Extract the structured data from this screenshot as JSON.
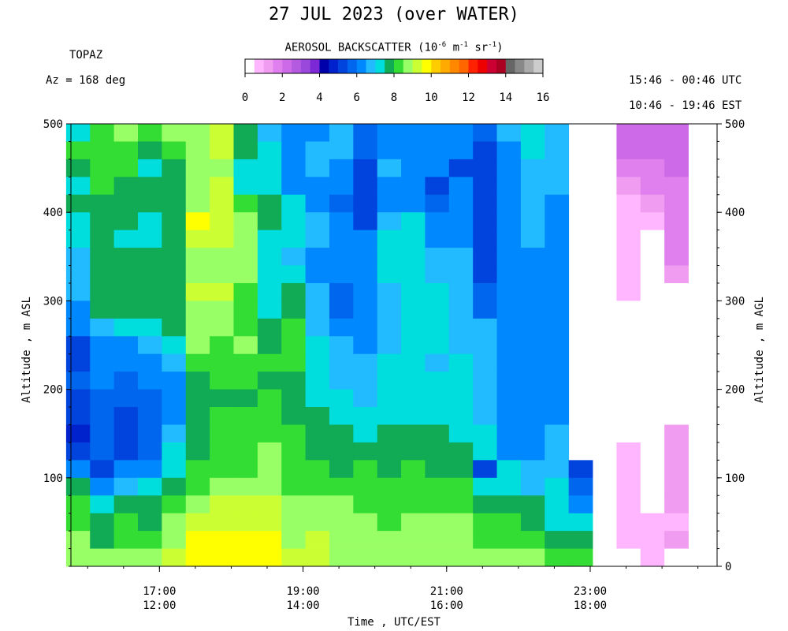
{
  "header": {
    "title": "27 JUL 2023 (over WATER)",
    "instrument": "TOPAZ",
    "azimuth": "Az = 168 deg",
    "time_utc": "15:46 - 00:46 UTC",
    "time_est": "10:46 - 19:46 EST"
  },
  "colorbar": {
    "title_prefix": "AEROSOL BACKSCATTER (10",
    "title_exp1": "-6",
    "title_mid": " m",
    "title_exp2": "-1",
    "title_mid2": " sr",
    "title_exp3": "-1",
    "title_suffix": ")",
    "ticks": [
      "0",
      "2",
      "4",
      "6",
      "8",
      "10",
      "12",
      "14",
      "16"
    ],
    "range": [
      0,
      16
    ]
  },
  "colors": {
    "scale": [
      "#ffffff",
      "#ffb6ff",
      "#f09cf0",
      "#e080ee",
      "#cd6ae8",
      "#b45ae0",
      "#9a48dc",
      "#7c28d6",
      "#0000aa",
      "#0022cc",
      "#0044dd",
      "#0066ee",
      "#0088ff",
      "#22bbff",
      "#00dddd",
      "#11aa55",
      "#33dd33",
      "#99ff66",
      "#ccff33",
      "#ffff00",
      "#ffcc00",
      "#ffaa00",
      "#ff8800",
      "#ff6600",
      "#ff2200",
      "#ee0000",
      "#cc0033",
      "#aa0022",
      "#666666",
      "#888888",
      "#aaaaaa",
      "#cccccc"
    ],
    "blue": "#0044dd"
  },
  "chart_data": {
    "type": "heatmap",
    "title": "27 JUL 2023 (over WATER)",
    "xlabel": "Time , UTC/EST",
    "ylabel_left": "Altitude , m ASL",
    "ylabel_right": "Altitude , m AGL",
    "ylim": [
      0,
      500
    ],
    "xlim_utc_hours": [
      15.767,
      24.767
    ],
    "x_ticks": [
      {
        "utc": "17:00",
        "est": "12:00"
      },
      {
        "utc": "19:00",
        "est": "14:00"
      },
      {
        "utc": "21:00",
        "est": "16:00"
      },
      {
        "utc": "23:00",
        "est": "18:00"
      }
    ],
    "y_ticks": [
      100,
      200,
      300,
      400,
      500
    ],
    "y_ticks_right": [
      0,
      100,
      200,
      300,
      400,
      500
    ],
    "value_unit": "1e-6 m^-1 sr^-1",
    "row_altitudes_m": [
      490,
      470,
      450,
      430,
      410,
      390,
      370,
      350,
      330,
      310,
      290,
      270,
      250,
      230,
      210,
      190,
      170,
      150,
      130,
      110,
      90,
      70,
      50,
      30,
      15
    ],
    "profiles": [
      {
        "time_utc": "15:52",
        "values": [
          7,
          8.3,
          7.7,
          7.3,
          7.6,
          7.0,
          7.0,
          6.8,
          6.8,
          6.8,
          6.4,
          6.4,
          5.2,
          5.4,
          5.6,
          5.2,
          5.0,
          4.9,
          5.1,
          6.0,
          7.5,
          8.0,
          8.3,
          8.6,
          8.9
        ]
      },
      {
        "time_utc": "16:12",
        "values": [
          8.3,
          8.0,
          8.3,
          8.3,
          7.7,
          7.7,
          7.7,
          7.6,
          7.6,
          7.6,
          7.5,
          6.5,
          6.4,
          6.2,
          6.0,
          5.6,
          5.6,
          5.6,
          5.6,
          5.2,
          6.0,
          7.2,
          7.6,
          7.8,
          8.5
        ]
      },
      {
        "time_utc": "16:32",
        "values": [
          8.5,
          8.2,
          8.2,
          7.7,
          7.7,
          7.7,
          7.2,
          7.6,
          7.7,
          7.7,
          7.7,
          7.2,
          6.4,
          6.0,
          5.6,
          5.6,
          5.2,
          5.4,
          5.2,
          6.0,
          6.8,
          7.6,
          8.3,
          8.3,
          8.6
        ]
      },
      {
        "time_utc": "16:52",
        "values": [
          8.0,
          7.6,
          7.0,
          7.6,
          7.6,
          7.0,
          7.0,
          7.6,
          7.6,
          7.6,
          7.6,
          7.2,
          6.5,
          6.3,
          6.0,
          5.6,
          5.6,
          5.6,
          5.6,
          6.3,
          7.0,
          7.5,
          7.8,
          8.3,
          8.6
        ]
      },
      {
        "time_utc": "17:12",
        "values": [
          8.6,
          8.0,
          7.7,
          7.7,
          7.7,
          7.7,
          7.6,
          7.6,
          7.6,
          7.6,
          7.6,
          7.6,
          7.0,
          6.8,
          6.4,
          6.4,
          6.4,
          6.8,
          7.0,
          7.2,
          7.6,
          8.1,
          8.6,
          8.9,
          9.2
        ]
      },
      {
        "time_utc": "17:32",
        "values": [
          8.6,
          8.8,
          8.8,
          8.6,
          8.8,
          9.5,
          9.2,
          8.8,
          8.6,
          9.0,
          8.6,
          8.6,
          8.6,
          8.1,
          7.7,
          7.7,
          7.6,
          7.6,
          7.7,
          8.0,
          8.4,
          8.8,
          9.2,
          9.6,
          9.8
        ]
      },
      {
        "time_utc": "17:52",
        "values": [
          9.0,
          9.0,
          8.8,
          9.0,
          9.3,
          9.4,
          9.1,
          8.8,
          8.8,
          9.0,
          8.6,
          8.6,
          8.4,
          8.3,
          8.0,
          7.8,
          8.0,
          8.2,
          8.3,
          8.4,
          8.8,
          9.0,
          9.3,
          9.6,
          9.8
        ]
      },
      {
        "time_utc": "18:12",
        "values": [
          7.6,
          7.6,
          7.4,
          7.0,
          8.0,
          8.5,
          8.6,
          8.6,
          8.6,
          8.1,
          8.0,
          8.0,
          8.5,
          8.4,
          8.3,
          7.8,
          8.4,
          8.2,
          8.3,
          8.4,
          8.6,
          9.0,
          9.3,
          9.6,
          9.8
        ]
      },
      {
        "time_utc": "18:32",
        "values": [
          6.6,
          7.0,
          7.2,
          7.4,
          7.6,
          7.6,
          7.2,
          7.0,
          7.2,
          7.2,
          7.4,
          7.7,
          7.8,
          8.0,
          7.9,
          8.0,
          8.2,
          8.4,
          8.6,
          8.8,
          8.8,
          9.0,
          9.3,
          9.6,
          9.8
        ]
      },
      {
        "time_utc": "18:52",
        "values": [
          6.0,
          6.4,
          6.0,
          6.4,
          7.2,
          7.2,
          7.2,
          6.8,
          7.2,
          7.6,
          7.6,
          8.0,
          8.4,
          8.0,
          7.8,
          7.6,
          7.8,
          8.0,
          8.2,
          8.2,
          8.4,
          8.6,
          8.6,
          8.8,
          9.0
        ]
      },
      {
        "time_utc": "19:12",
        "values": [
          6.4,
          6.6,
          6.6,
          6.2,
          6.4,
          6.8,
          6.8,
          6.4,
          6.4,
          6.6,
          6.6,
          6.8,
          7.0,
          7.4,
          7.2,
          7.2,
          7.6,
          7.6,
          7.8,
          8.0,
          8.3,
          8.6,
          8.8,
          9.0,
          9.0
        ]
      },
      {
        "time_utc": "19:32",
        "values": [
          6.6,
          6.6,
          6.2,
          6.0,
          5.6,
          6.0,
          6.0,
          6.0,
          6.0,
          5.6,
          5.6,
          6.0,
          6.6,
          6.6,
          6.8,
          7.0,
          7.4,
          7.6,
          7.8,
          7.8,
          8.0,
          8.6,
          8.6,
          8.6,
          8.9
        ]
      },
      {
        "time_utc": "19:52",
        "values": [
          5.8,
          5.8,
          5.4,
          5.4,
          5.4,
          5.4,
          6.0,
          6.2,
          6.2,
          6.2,
          6.2,
          6.2,
          6.2,
          6.6,
          6.6,
          6.6,
          7.2,
          7.4,
          7.8,
          8.0,
          8.0,
          8.4,
          8.6,
          8.6,
          8.9
        ]
      },
      {
        "time_utc": "20:12",
        "values": [
          6.4,
          6.4,
          6.6,
          6.4,
          6.2,
          6.6,
          7.0,
          7.0,
          7.2,
          6.8,
          6.8,
          6.8,
          6.8,
          7.0,
          7.0,
          7.0,
          7.2,
          7.6,
          7.8,
          7.8,
          8.0,
          8.0,
          8.3,
          8.6,
          8.6
        ]
      },
      {
        "time_utc": "20:32",
        "values": [
          6.4,
          6.0,
          6.0,
          6.4,
          6.4,
          7.0,
          7.2,
          7.0,
          7.0,
          7.0,
          7.0,
          7.0,
          7.2,
          7.2,
          7.4,
          7.4,
          7.4,
          7.6,
          7.8,
          8.0,
          8.2,
          8.4,
          8.6,
          8.6,
          8.6
        ]
      },
      {
        "time_utc": "20:52",
        "values": [
          6.4,
          6.0,
          6.0,
          5.4,
          5.8,
          6.0,
          6.4,
          6.6,
          6.6,
          7.0,
          7.2,
          7.2,
          7.0,
          6.8,
          7.0,
          7.2,
          7.4,
          7.6,
          7.8,
          7.8,
          8.0,
          8.4,
          8.6,
          8.6,
          8.6
        ]
      },
      {
        "time_utc": "21:12",
        "values": [
          6.2,
          6.0,
          5.4,
          6.0,
          6.0,
          6.0,
          6.2,
          6.6,
          6.6,
          6.6,
          6.6,
          6.6,
          6.6,
          7.0,
          7.2,
          7.2,
          7.2,
          7.4,
          7.6,
          7.6,
          8.0,
          8.4,
          8.6,
          8.6,
          8.6
        ]
      },
      {
        "time_utc": "21:32",
        "values": [
          5.6,
          5.4,
          5.4,
          5.4,
          5.4,
          5.4,
          5.4,
          5.4,
          5.4,
          5.6,
          5.8,
          6.6,
          6.6,
          6.6,
          6.6,
          6.6,
          6.6,
          7.0,
          7.2,
          5.4,
          7.4,
          7.6,
          8.0,
          8.2,
          8.6
        ]
      },
      {
        "time_utc": "21:52",
        "values": [
          6.6,
          6.2,
          6.2,
          6.4,
          6.2,
          6.2,
          6.2,
          6.2,
          6.2,
          6.2,
          6.2,
          6.4,
          6.4,
          6.4,
          6.2,
          6.0,
          6.0,
          6.0,
          6.2,
          7.2,
          7.4,
          7.8,
          8.0,
          8.4,
          8.6
        ]
      },
      {
        "time_utc": "22:12",
        "values": [
          7.4,
          7.4,
          6.8,
          6.6,
          6.6,
          6.6,
          6.6,
          6.2,
          6.2,
          6.2,
          6.2,
          6.2,
          6.2,
          6.2,
          6.0,
          6.0,
          6.0,
          6.0,
          6.2,
          6.6,
          6.8,
          7.6,
          7.8,
          8.2,
          8.6
        ]
      },
      {
        "time_utc": "22:32",
        "values": [
          6.6,
          6.6,
          6.6,
          6.6,
          6.4,
          6.4,
          6.4,
          6.2,
          6.2,
          6.2,
          6.2,
          6.2,
          6.0,
          6.0,
          6.0,
          6.0,
          6.4,
          6.6,
          6.6,
          6.6,
          7.0,
          7.0,
          7.4,
          7.6,
          8.2
        ]
      },
      {
        "time_utc": "22:52",
        "values": [
          null,
          null,
          null,
          null,
          null,
          null,
          null,
          null,
          null,
          null,
          null,
          null,
          null,
          null,
          null,
          null,
          null,
          null,
          null,
          5.4,
          5.6,
          6.4,
          7.2,
          7.6,
          8.0
        ]
      },
      {
        "time_utc": "23:32",
        "values": [
          2.4,
          2.2,
          1.8,
          1.2,
          0.6,
          0.6,
          0.5,
          0.5,
          0.5,
          0.5,
          0.3,
          0.3,
          0.4,
          0.4,
          0.4,
          0.4,
          0.3,
          0.3,
          0.5,
          0.6,
          0.5,
          0.6,
          0.6,
          0.6,
          0.4
        ]
      },
      {
        "time_utc": "23:52",
        "values": [
          2.2,
          2.0,
          1.8,
          1.6,
          1.2,
          0.6,
          0.3,
          0.2,
          0.2,
          0.3,
          0.3,
          0.3,
          0.3,
          0.3,
          0.3,
          0.3,
          0.2,
          0.2,
          0.2,
          0.3,
          0.3,
          0.3,
          0.6,
          0.7,
          0.7
        ]
      },
      {
        "time_utc": "00:12",
        "values": [
          2.0,
          2.0,
          2.0,
          1.8,
          1.8,
          1.8,
          1.8,
          1.6,
          1.4,
          0.3,
          0.3,
          0.3,
          0.3,
          0.3,
          0.3,
          0.3,
          0.3,
          1.2,
          1.2,
          1.2,
          1.2,
          1.0,
          0.8,
          1.2,
          0.2
        ]
      }
    ]
  }
}
